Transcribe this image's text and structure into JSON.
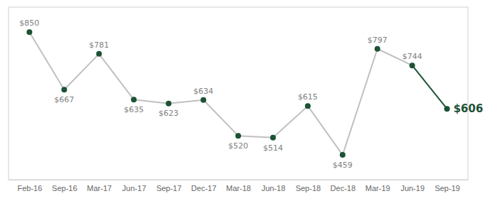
{
  "chart_data": {
    "type": "line",
    "categories": [
      "Feb-16",
      "Sep-16",
      "Mar-17",
      "Jun-17",
      "Sep-17",
      "Dec-17",
      "Mar-18",
      "Jun-18",
      "Sep-18",
      "Dec-18",
      "Mar-19",
      "Jun-19",
      "Sep-19"
    ],
    "values": [
      850,
      667,
      781,
      635,
      623,
      634,
      520,
      514,
      615,
      459,
      797,
      744,
      606
    ],
    "value_labels": [
      "$850",
      "$667",
      "$781",
      "$635",
      "$623",
      "$634",
      "$520",
      "$514",
      "$615",
      "$459",
      "$797",
      "$744",
      "$606"
    ],
    "data_labels": true,
    "color": "#1d5235",
    "ylim": [
      380,
      930
    ],
    "tick_labels": "x",
    "grid": false
  }
}
